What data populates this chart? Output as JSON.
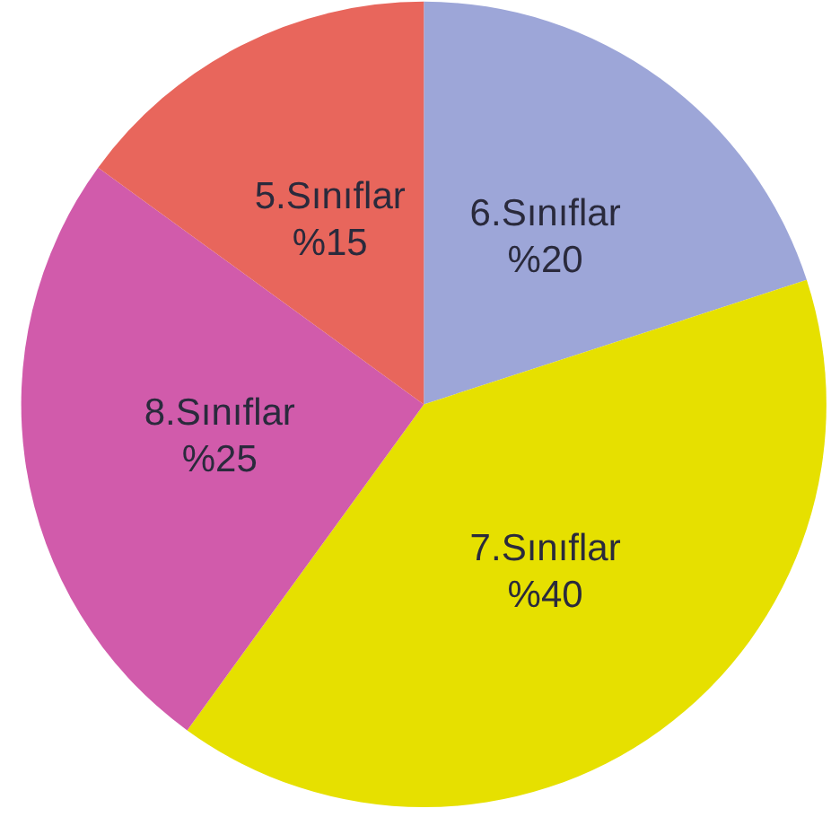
{
  "chart_data": {
    "type": "pie",
    "categories": [
      "6.Sınıflar",
      "7.Sınıflar",
      "8.Sınıflar",
      "5.Sınıflar"
    ],
    "values": [
      20,
      40,
      25,
      15
    ],
    "value_labels": [
      "%20",
      "%40",
      "%25",
      "%15"
    ],
    "colors": [
      "#9da6d8",
      "#e6e000",
      "#d15bab",
      "#e8665c"
    ]
  }
}
